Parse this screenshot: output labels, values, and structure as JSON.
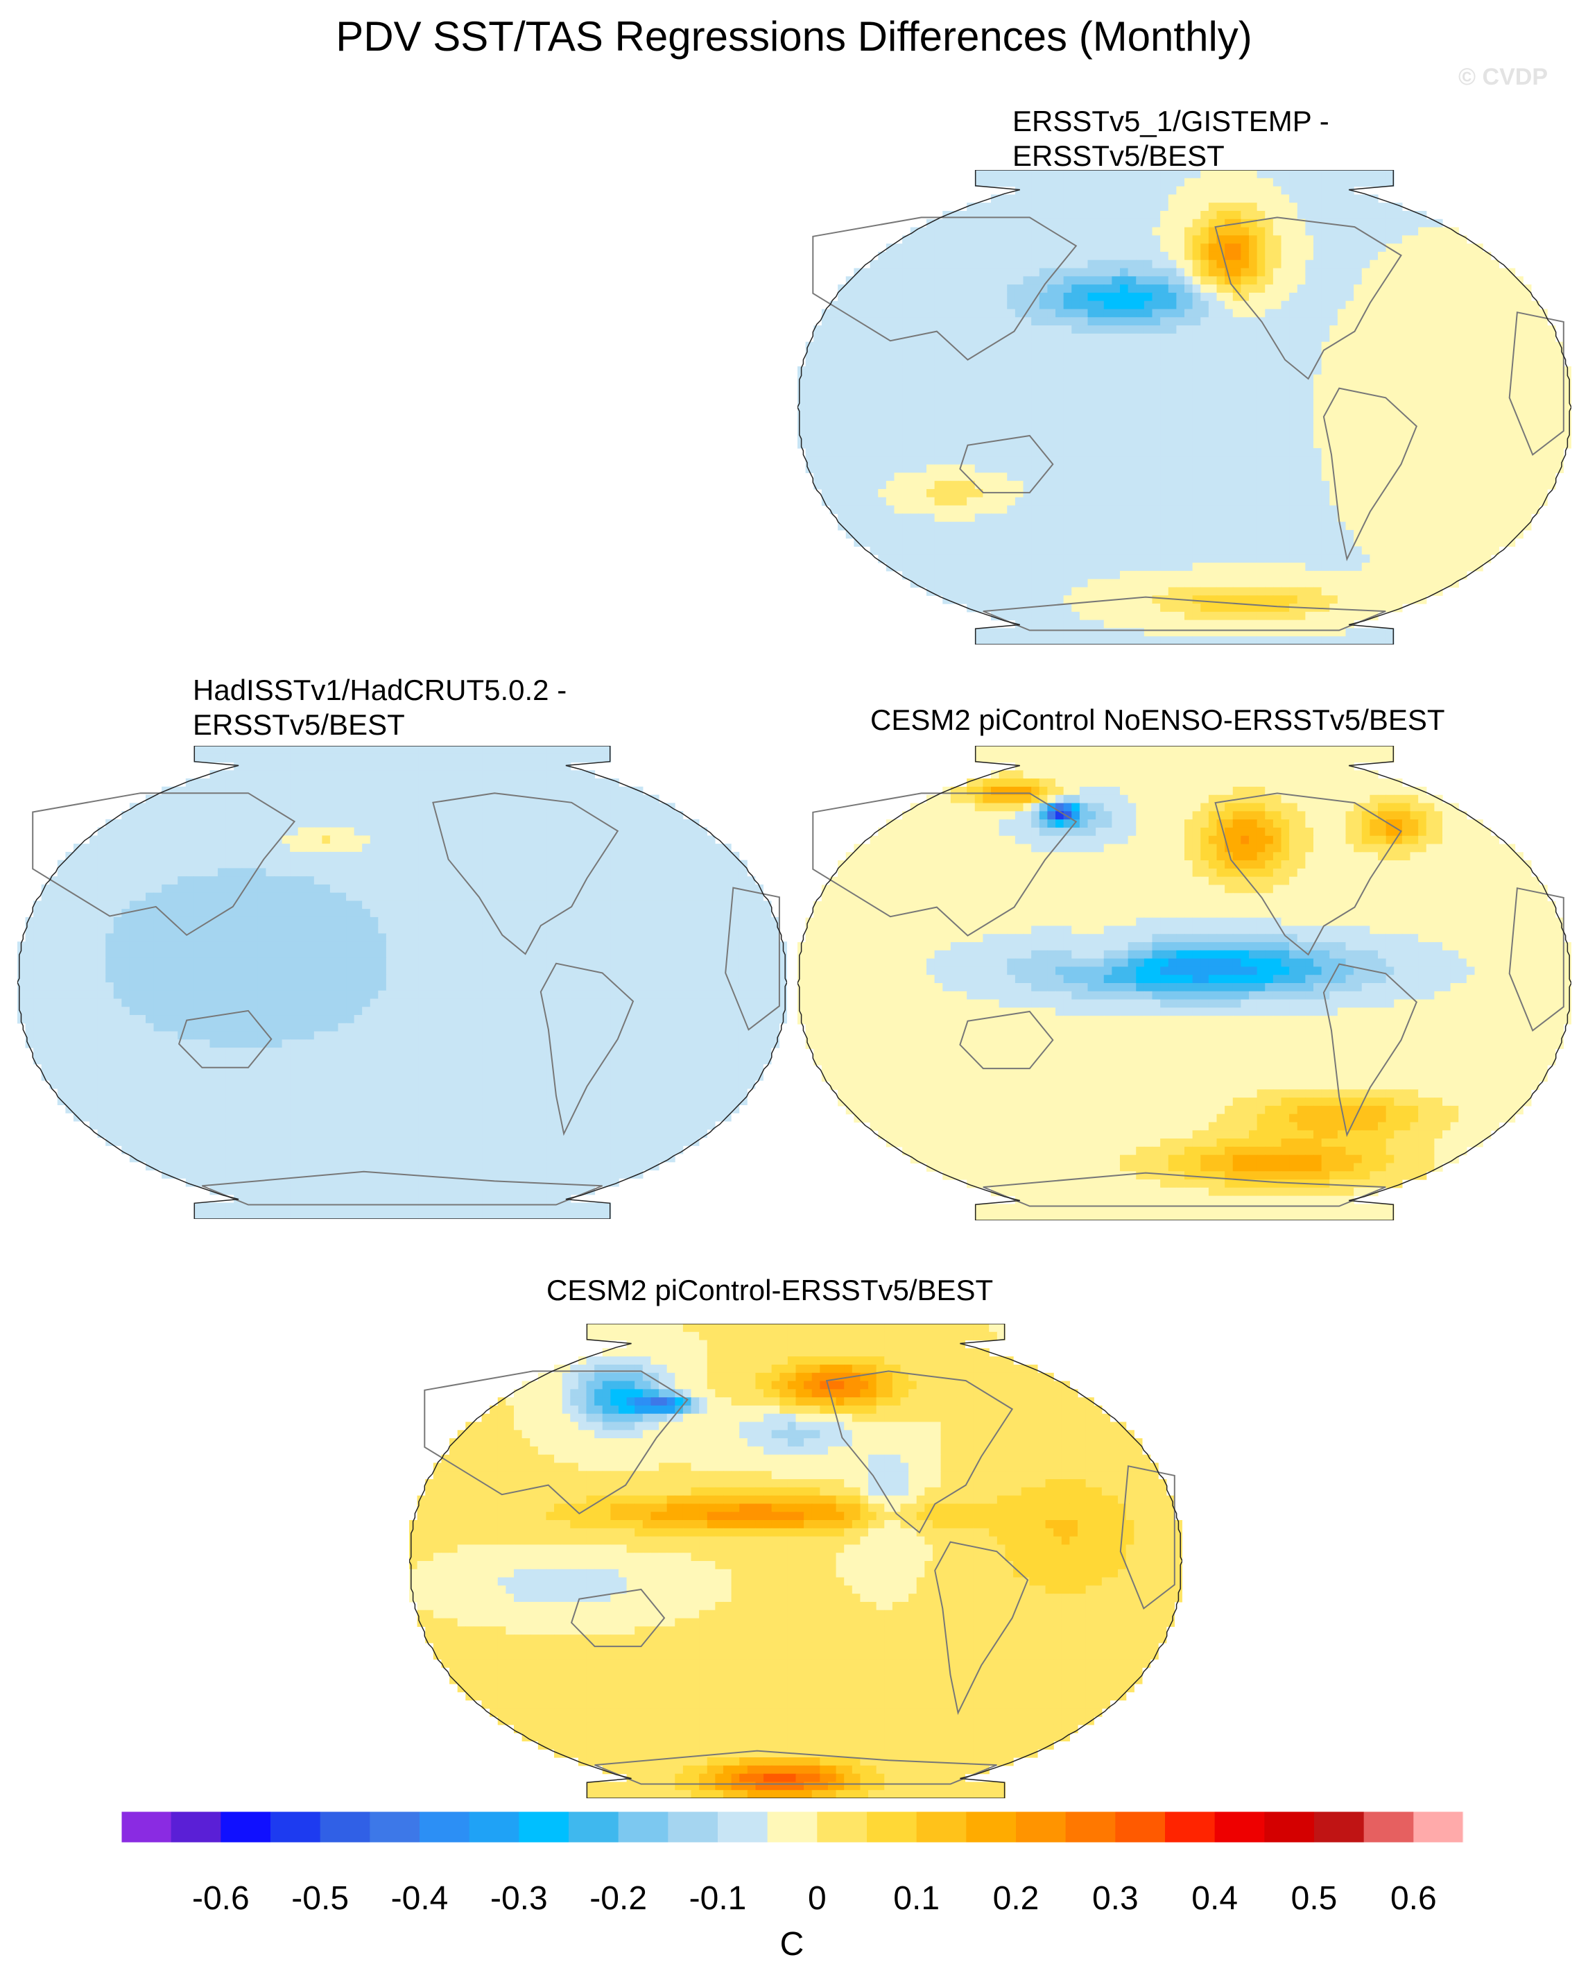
{
  "figure": {
    "title": "PDV SST/TAS Regressions Differences (Monthly)",
    "credit": "© CVDP"
  },
  "panels": [
    {
      "title_line1": "ERSSTv5_1/GISTEMP -",
      "title_line2": "ERSSTv5/BEST",
      "pattern": "gistemp"
    },
    {
      "title_line1": "HadISSTv1/HadCRUT5.0.2 -",
      "title_line2": "ERSSTv5/BEST",
      "pattern": "hadisst"
    },
    {
      "title_line1": "CESM2 piControl NoENSO-ERSSTv5/BEST",
      "title_line2": "",
      "pattern": "noenso"
    },
    {
      "title_line1": "CESM2 piControl-ERSSTv5/BEST",
      "title_line2": "",
      "pattern": "control"
    }
  ],
  "chart_data": {
    "type": "heatmap",
    "projection": "Robinson, centered on the Pacific",
    "units": "C",
    "levels": [
      -0.65,
      -0.6,
      -0.55,
      -0.5,
      -0.45,
      -0.4,
      -0.35,
      -0.3,
      -0.25,
      -0.2,
      -0.15,
      -0.1,
      -0.05,
      0,
      0.05,
      0.1,
      0.15,
      0.2,
      0.25,
      0.3,
      0.35,
      0.4,
      0.45,
      0.5,
      0.55,
      0.6,
      0.65
    ],
    "tick_labels": [
      "-0.6",
      "-0.5",
      "-0.4",
      "-0.3",
      "-0.2",
      "-0.1",
      "0",
      "0.1",
      "0.2",
      "0.3",
      "0.4",
      "0.5",
      "0.6"
    ],
    "colors": [
      "#8a2be2",
      "#5a1fd6",
      "#1010ff",
      "#1d3bf0",
      "#3060e6",
      "#3d78e8",
      "#2c8ff5",
      "#1fa2f6",
      "#00bfff",
      "#3fb8ee",
      "#7cc8f0",
      "#a5d5f0",
      "#c8e5f5",
      "#fff8b8",
      "#ffe566",
      "#ffd836",
      "#ffc21a",
      "#ffab00",
      "#ff9400",
      "#ff7800",
      "#ff5a00",
      "#ff2400",
      "#ee0000",
      "#d40000",
      "#c01414",
      "#e66060",
      "#ffaaaa"
    ]
  }
}
